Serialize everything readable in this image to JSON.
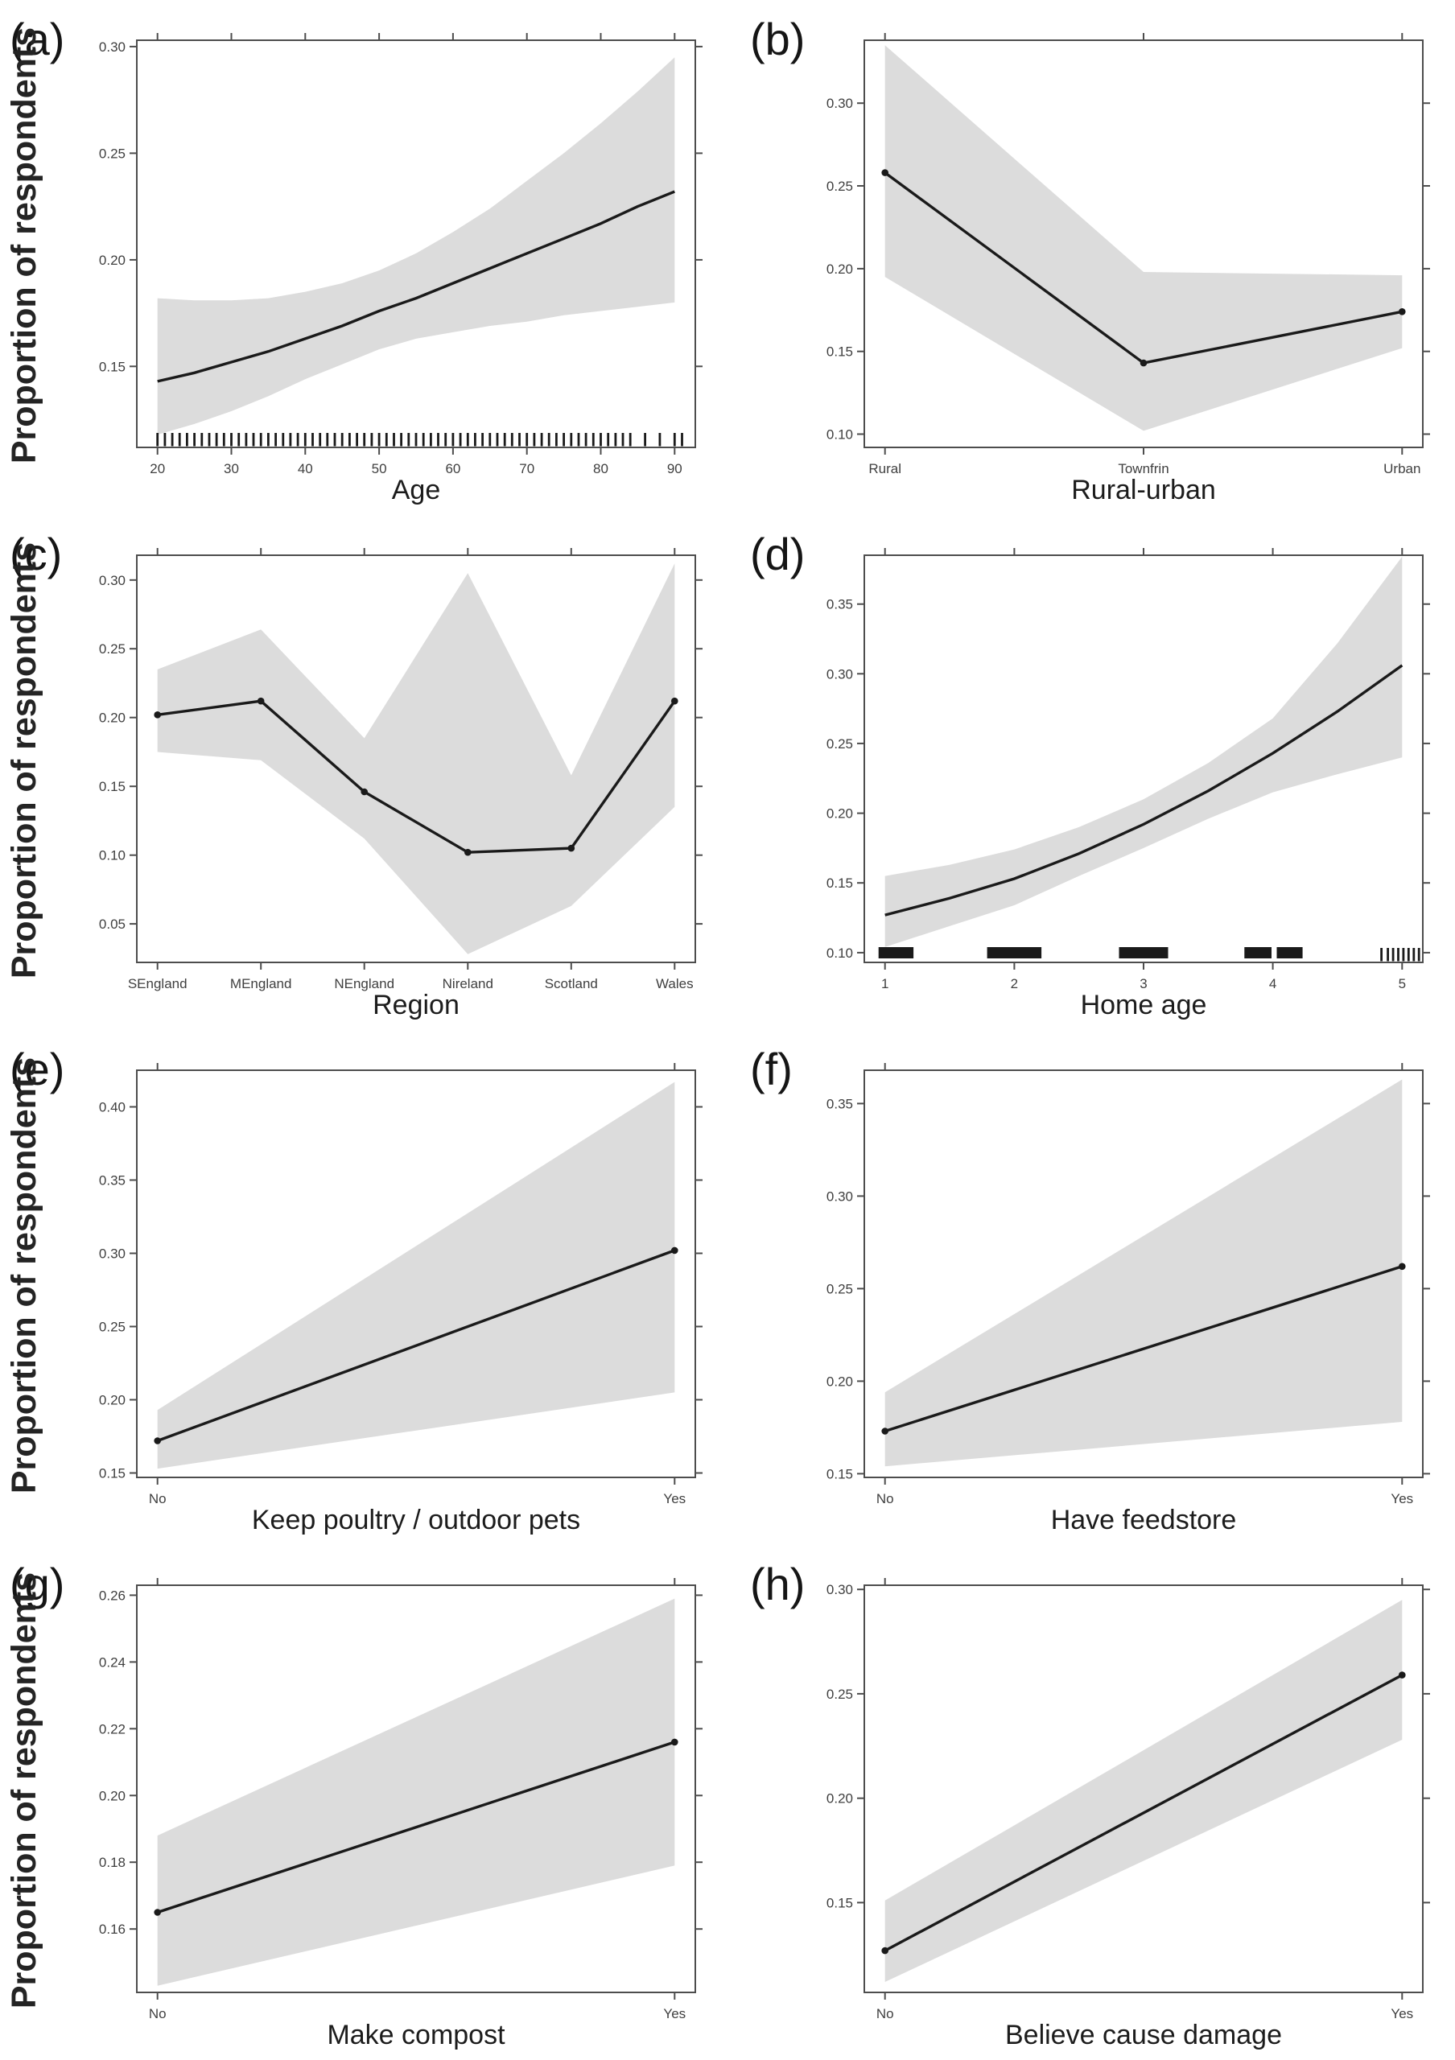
{
  "figure": {
    "background": "#ffffff",
    "band_color": "#dcdcdc",
    "line_color": "#1a1a1a",
    "axis_color": "#4d4d4d",
    "ylabel": "Proportion of respondents"
  },
  "chart_data": [
    {
      "panel": "(a)",
      "type": "line",
      "xlabel": "Age",
      "ylabel": "Proportion of respondents",
      "x_type": "numeric",
      "legend": "none",
      "grid": false,
      "xlim": [
        17.2,
        92.8
      ],
      "ylim": [
        0.112,
        0.303
      ],
      "x_ticks": [
        20,
        30,
        40,
        50,
        60,
        70,
        80,
        90
      ],
      "x_tick_labels": [
        "20",
        "30",
        "40",
        "50",
        "60",
        "70",
        "80",
        "90"
      ],
      "y_ticks": [
        0.15,
        0.2,
        0.25,
        0.3
      ],
      "y_tick_labels": [
        "0.15",
        "0.20",
        "0.25",
        "0.30"
      ],
      "x": [
        20,
        25,
        30,
        35,
        40,
        45,
        50,
        55,
        60,
        65,
        70,
        75,
        80,
        85,
        90
      ],
      "y": [
        0.143,
        0.147,
        0.152,
        0.157,
        0.163,
        0.169,
        0.176,
        0.182,
        0.189,
        0.196,
        0.203,
        0.21,
        0.217,
        0.225,
        0.232
      ],
      "band_upper": [
        0.182,
        0.181,
        0.181,
        0.182,
        0.185,
        0.189,
        0.195,
        0.203,
        0.213,
        0.224,
        0.237,
        0.25,
        0.264,
        0.279,
        0.295
      ],
      "band_lower": [
        0.118,
        0.123,
        0.129,
        0.136,
        0.144,
        0.151,
        0.158,
        0.163,
        0.166,
        0.169,
        0.171,
        0.174,
        0.176,
        0.178,
        0.18
      ],
      "markers": false,
      "rug_x": [
        20,
        21,
        22,
        23,
        24,
        25,
        26,
        27,
        28,
        29,
        30,
        31,
        32,
        33,
        34,
        35,
        36,
        37,
        38,
        39,
        40,
        41,
        42,
        43,
        44,
        45,
        46,
        47,
        48,
        49,
        50,
        51,
        52,
        53,
        54,
        55,
        56,
        57,
        58,
        59,
        60,
        61,
        62,
        63,
        64,
        65,
        66,
        67,
        68,
        69,
        70,
        71,
        72,
        73,
        74,
        75,
        76,
        77,
        78,
        79,
        80,
        81,
        82,
        83,
        84,
        86,
        88,
        90,
        91
      ]
    },
    {
      "panel": "(b)",
      "type": "line",
      "xlabel": "Rural-urban",
      "x_type": "categorical",
      "legend": "none",
      "grid": false,
      "xlim": [
        0.92,
        3.08
      ],
      "ylim": [
        0.092,
        0.338
      ],
      "x_ticks": [
        1,
        2,
        3
      ],
      "x_tick_labels": [
        "Rural",
        "Townfrin",
        "Urban"
      ],
      "y_ticks": [
        0.1,
        0.15,
        0.2,
        0.25,
        0.3
      ],
      "y_tick_labels": [
        "0.10",
        "0.15",
        "0.20",
        "0.25",
        "0.30"
      ],
      "x": [
        1,
        2,
        3
      ],
      "y": [
        0.258,
        0.143,
        0.174
      ],
      "band_upper": [
        0.335,
        0.198,
        0.196
      ],
      "band_lower": [
        0.195,
        0.102,
        0.152
      ],
      "markers": true
    },
    {
      "panel": "(c)",
      "type": "line",
      "xlabel": "Region",
      "ylabel": "Proportion of respondents",
      "x_type": "categorical",
      "legend": "none",
      "grid": false,
      "xlim": [
        0.8,
        6.2
      ],
      "ylim": [
        0.022,
        0.318
      ],
      "x_ticks": [
        1,
        2,
        3,
        4,
        5,
        6
      ],
      "x_tick_labels": [
        "SEngland",
        "MEngland",
        "NEngland",
        "Nireland",
        "Scotland",
        "Wales"
      ],
      "y_ticks": [
        0.05,
        0.1,
        0.15,
        0.2,
        0.25,
        0.3
      ],
      "y_tick_labels": [
        "0.05",
        "0.10",
        "0.15",
        "0.20",
        "0.25",
        "0.30"
      ],
      "x": [
        1,
        2,
        3,
        4,
        5,
        6
      ],
      "y": [
        0.202,
        0.212,
        0.146,
        0.102,
        0.105,
        0.212
      ],
      "band_upper": [
        0.235,
        0.264,
        0.185,
        0.305,
        0.158,
        0.312
      ],
      "band_lower": [
        0.175,
        0.169,
        0.112,
        0.028,
        0.063,
        0.135
      ],
      "markers": true
    },
    {
      "panel": "(d)",
      "type": "line",
      "xlabel": "Home age",
      "x_type": "numeric",
      "legend": "none",
      "grid": false,
      "xlim": [
        0.84,
        5.16
      ],
      "ylim": [
        0.093,
        0.385
      ],
      "x_ticks": [
        1,
        2,
        3,
        4,
        5
      ],
      "x_tick_labels": [
        "1",
        "2",
        "3",
        "4",
        "5"
      ],
      "y_ticks": [
        0.1,
        0.15,
        0.2,
        0.25,
        0.3,
        0.35
      ],
      "y_tick_labels": [
        "0.10",
        "0.15",
        "0.20",
        "0.25",
        "0.30",
        "0.35"
      ],
      "x": [
        1,
        1.5,
        2,
        2.5,
        3,
        3.5,
        4,
        4.5,
        5
      ],
      "y": [
        0.127,
        0.139,
        0.153,
        0.171,
        0.192,
        0.216,
        0.243,
        0.273,
        0.306
      ],
      "band_upper": [
        0.155,
        0.163,
        0.174,
        0.19,
        0.21,
        0.236,
        0.268,
        0.322,
        0.384
      ],
      "band_lower": [
        0.104,
        0.119,
        0.134,
        0.155,
        0.175,
        0.196,
        0.215,
        0.228,
        0.24
      ],
      "markers": false,
      "rug_blocks": [
        [
          0.95,
          1.22
        ],
        [
          1.79,
          2.21
        ],
        [
          2.81,
          3.19
        ],
        [
          3.78,
          3.99
        ],
        [
          4.03,
          4.23
        ]
      ],
      "rug_x": [
        4.84,
        4.89,
        4.93,
        4.97,
        5.01,
        5.05,
        5.09,
        5.13
      ]
    },
    {
      "panel": "(e)",
      "type": "line",
      "xlabel": "Keep poultry / outdoor pets",
      "ylabel": "Proportion of respondents",
      "x_type": "categorical",
      "legend": "none",
      "grid": false,
      "xlim": [
        0.96,
        2.04
      ],
      "ylim": [
        0.147,
        0.425
      ],
      "x_ticks": [
        1,
        2
      ],
      "x_tick_labels": [
        "No",
        "Yes"
      ],
      "y_ticks": [
        0.15,
        0.2,
        0.25,
        0.3,
        0.35,
        0.4
      ],
      "y_tick_labels": [
        "0.15",
        "0.20",
        "0.25",
        "0.30",
        "0.35",
        "0.40"
      ],
      "x": [
        1,
        2
      ],
      "y": [
        0.172,
        0.302
      ],
      "band_upper": [
        0.193,
        0.417
      ],
      "band_lower": [
        0.153,
        0.205
      ],
      "markers": true
    },
    {
      "panel": "(f)",
      "type": "line",
      "xlabel": "Have feedstore",
      "x_type": "categorical",
      "legend": "none",
      "grid": false,
      "xlim": [
        0.96,
        2.04
      ],
      "ylim": [
        0.148,
        0.368
      ],
      "x_ticks": [
        1,
        2
      ],
      "x_tick_labels": [
        "No",
        "Yes"
      ],
      "y_ticks": [
        0.15,
        0.2,
        0.25,
        0.3,
        0.35
      ],
      "y_tick_labels": [
        "0.15",
        "0.20",
        "0.25",
        "0.30",
        "0.35"
      ],
      "x": [
        1,
        2
      ],
      "y": [
        0.173,
        0.262
      ],
      "band_upper": [
        0.194,
        0.363
      ],
      "band_lower": [
        0.154,
        0.178
      ],
      "markers": true
    },
    {
      "panel": "(g)",
      "type": "line",
      "xlabel": "Make compost",
      "ylabel": "Proportion of respondents",
      "x_type": "categorical",
      "legend": "none",
      "grid": false,
      "xlim": [
        0.96,
        2.04
      ],
      "ylim": [
        0.141,
        0.263
      ],
      "x_ticks": [
        1,
        2
      ],
      "x_tick_labels": [
        "No",
        "Yes"
      ],
      "y_ticks": [
        0.16,
        0.18,
        0.2,
        0.22,
        0.24,
        0.26
      ],
      "y_tick_labels": [
        "0.16",
        "0.18",
        "0.20",
        "0.22",
        "0.24",
        "0.26"
      ],
      "x": [
        1,
        2
      ],
      "y": [
        0.165,
        0.216
      ],
      "band_upper": [
        0.188,
        0.259
      ],
      "band_lower": [
        0.143,
        0.179
      ],
      "markers": true
    },
    {
      "panel": "(h)",
      "type": "line",
      "xlabel": "Believe cause damage",
      "x_type": "categorical",
      "legend": "none",
      "grid": false,
      "xlim": [
        0.96,
        2.04
      ],
      "ylim": [
        0.107,
        0.302
      ],
      "x_ticks": [
        1,
        2
      ],
      "x_tick_labels": [
        "No",
        "Yes"
      ],
      "y_ticks": [
        0.15,
        0.2,
        0.25,
        0.3
      ],
      "y_tick_labels": [
        "0.15",
        "0.20",
        "0.25",
        "0.30"
      ],
      "x": [
        1,
        2
      ],
      "y": [
        0.127,
        0.259
      ],
      "band_upper": [
        0.151,
        0.295
      ],
      "band_lower": [
        0.112,
        0.228
      ],
      "markers": true
    }
  ]
}
